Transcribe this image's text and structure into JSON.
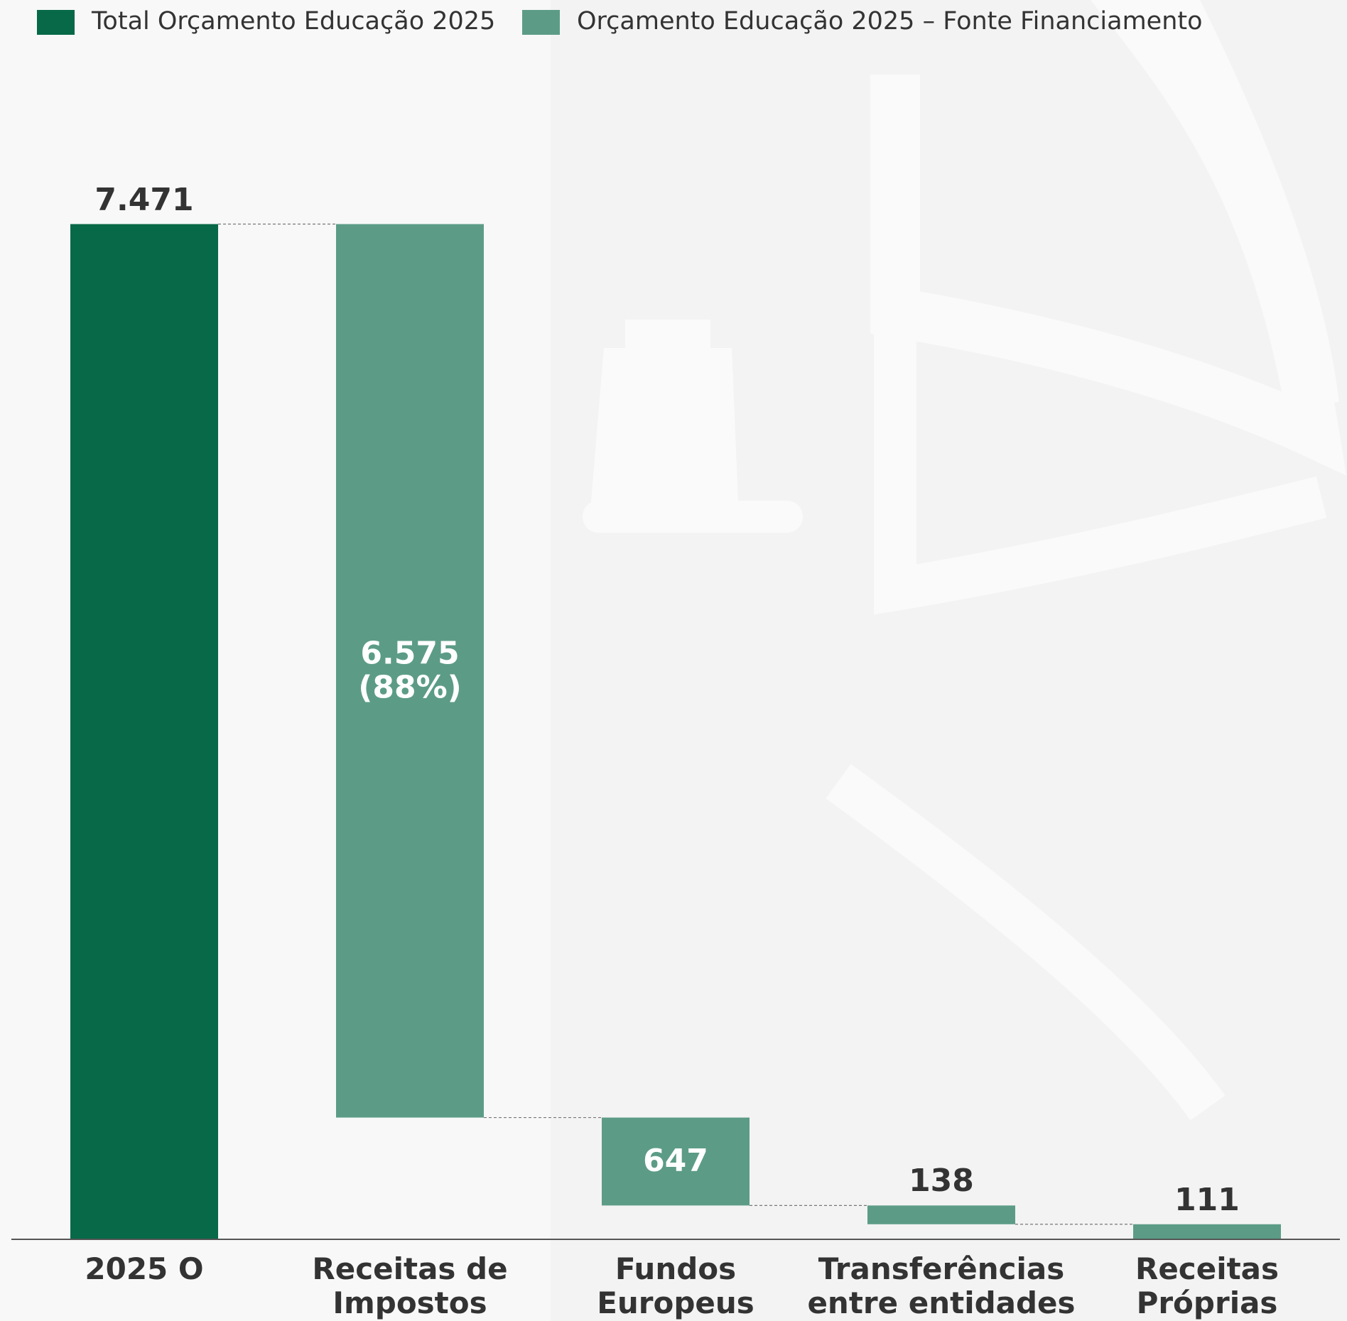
{
  "chart_data": {
    "type": "waterfall",
    "categories": [
      "2025 O",
      "Receitas de\nImpostos",
      "Fundos\nEuropeus",
      "Transferências\nentre entidades",
      "Receitas\nPróprias"
    ],
    "series": [
      {
        "name": "Total Orçamento Educação 2025",
        "color": "#076947",
        "values": [
          7471,
          null,
          null,
          null,
          null
        ],
        "value_labels": [
          "7.471",
          null,
          null,
          null,
          null
        ]
      },
      {
        "name": "Orçamento Educação 2025 – Fonte Financiamento",
        "color": "#5c9c87",
        "values": [
          null,
          6575,
          647,
          138,
          111
        ],
        "value_labels": [
          null,
          "6.575\n(88%)",
          "647",
          "138",
          "111"
        ]
      }
    ],
    "ylim": [
      0,
      9120
    ]
  }
}
